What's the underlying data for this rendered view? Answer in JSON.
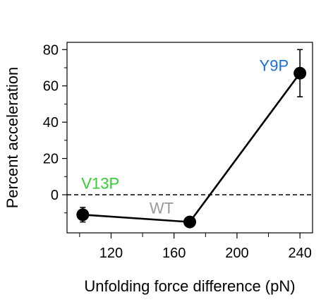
{
  "chart_data": {
    "type": "scatter",
    "xlabel": "Unfolding force difference (pN)",
    "ylabel": "Percent acceleration",
    "xlim": [
      92,
      248
    ],
    "ylim": [
      -21,
      84
    ],
    "x_ticks_major": [
      120,
      160,
      200,
      240
    ],
    "x_ticks_minor": [
      100,
      140,
      180,
      220
    ],
    "y_ticks": [
      0,
      20,
      40,
      60,
      80
    ],
    "y_ticks_minor": [
      -10,
      10,
      30,
      50,
      70
    ],
    "reference_line": {
      "y": 0,
      "style": "dashed"
    },
    "grid": false,
    "legend": "none",
    "points": [
      {
        "label": "V13P",
        "x": 102,
        "y": -11,
        "err": 4,
        "label_color": "#33cc33"
      },
      {
        "label": "WT",
        "x": 170,
        "y": -15,
        "err": 0,
        "label_color": "#999999"
      },
      {
        "label": "Y9P",
        "x": 240,
        "y": 67,
        "err": 13,
        "label_color": "#1a6fd4"
      }
    ],
    "connect_points": true,
    "marker_color": "#000000",
    "line_color": "#000000"
  }
}
